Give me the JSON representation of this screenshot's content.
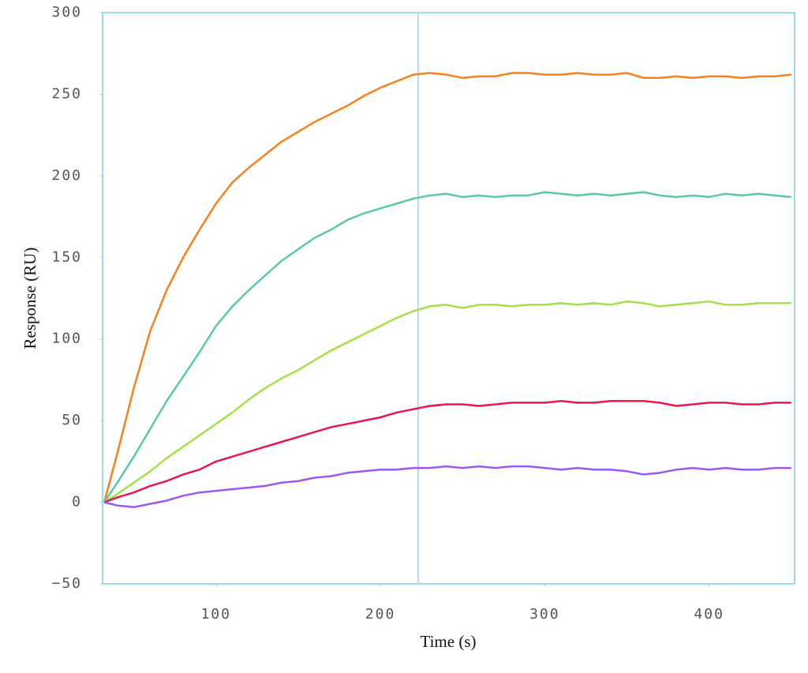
{
  "chart_data": {
    "type": "line",
    "x_label": "Time (s)",
    "y_label": "Response (RU)",
    "x": [
      32,
      40,
      50,
      60,
      70,
      80,
      90,
      100,
      110,
      120,
      130,
      140,
      150,
      160,
      170,
      180,
      190,
      200,
      210,
      220,
      230,
      240,
      250,
      260,
      270,
      280,
      290,
      300,
      310,
      320,
      330,
      340,
      350,
      360,
      370,
      380,
      390,
      400,
      410,
      420,
      430,
      440,
      450
    ],
    "series": [
      {
        "color": "#f5821f",
        "values": [
          0,
          30,
          70,
          105,
          130,
          150,
          167,
          183,
          196,
          205,
          213,
          221,
          227,
          233,
          238,
          243,
          249,
          254,
          258,
          262,
          263,
          262,
          260,
          261,
          261,
          263,
          263,
          262,
          262,
          263,
          262,
          262,
          263,
          260,
          260,
          261,
          260,
          261,
          261,
          260,
          261,
          261,
          262
        ]
      },
      {
        "color": "#5bc8a8",
        "values": [
          0,
          12,
          28,
          45,
          62,
          77,
          92,
          108,
          120,
          130,
          139,
          148,
          155,
          162,
          167,
          173,
          177,
          180,
          183,
          186,
          188,
          189,
          187,
          188,
          187,
          188,
          188,
          190,
          189,
          188,
          189,
          188,
          189,
          190,
          188,
          187,
          188,
          187,
          189,
          188,
          189,
          188,
          187
        ]
      },
      {
        "color": "#a5e04a",
        "values": [
          0,
          5,
          12,
          19,
          27,
          34,
          41,
          48,
          55,
          63,
          70,
          76,
          81,
          87,
          93,
          98,
          103,
          108,
          113,
          117,
          120,
          121,
          119,
          121,
          121,
          120,
          121,
          121,
          122,
          121,
          122,
          121,
          123,
          122,
          120,
          121,
          122,
          123,
          121,
          121,
          122,
          122,
          122
        ]
      },
      {
        "color": "#e8174f",
        "values": [
          0,
          3,
          6,
          10,
          13,
          17,
          20,
          25,
          28,
          31,
          34,
          37,
          40,
          43,
          46,
          48,
          50,
          52,
          55,
          57,
          59,
          60,
          60,
          59,
          60,
          61,
          61,
          61,
          62,
          61,
          61,
          62,
          62,
          62,
          61,
          59,
          60,
          61,
          61,
          60,
          60,
          61,
          61
        ]
      },
      {
        "color": "#9b59f0",
        "values": [
          0,
          -2,
          -3,
          -1,
          1,
          4,
          6,
          7,
          8,
          9,
          10,
          12,
          13,
          15,
          16,
          18,
          19,
          20,
          20,
          21,
          21,
          22,
          21,
          22,
          21,
          22,
          22,
          21,
          20,
          21,
          20,
          20,
          19,
          17,
          18,
          20,
          21,
          20,
          21,
          20,
          20,
          21,
          21
        ]
      }
    ],
    "xlim": [
      31,
      452
    ],
    "ylim": [
      -50,
      300
    ],
    "xticks": [
      100,
      200,
      300,
      400
    ],
    "yticks": [
      {
        "value": -50,
        "label": "−50"
      },
      0,
      50,
      100,
      150,
      200,
      250,
      300
    ],
    "vlines": [
      223
    ],
    "frame_color": "#7fcfe8",
    "vline_color": "#c8dce8",
    "grid": false
  }
}
